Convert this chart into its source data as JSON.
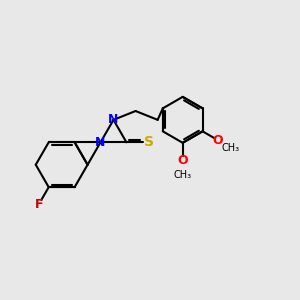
{
  "bg_color": "#e8e8e8",
  "bond_color": "#000000",
  "line_width": 1.5,
  "font_size": 9,
  "atom_colors": {
    "N": "#0000ff",
    "O": "#ff0000",
    "S": "#ccaa00",
    "F": "#cc0000",
    "H": "#888888",
    "C": "#000000"
  }
}
